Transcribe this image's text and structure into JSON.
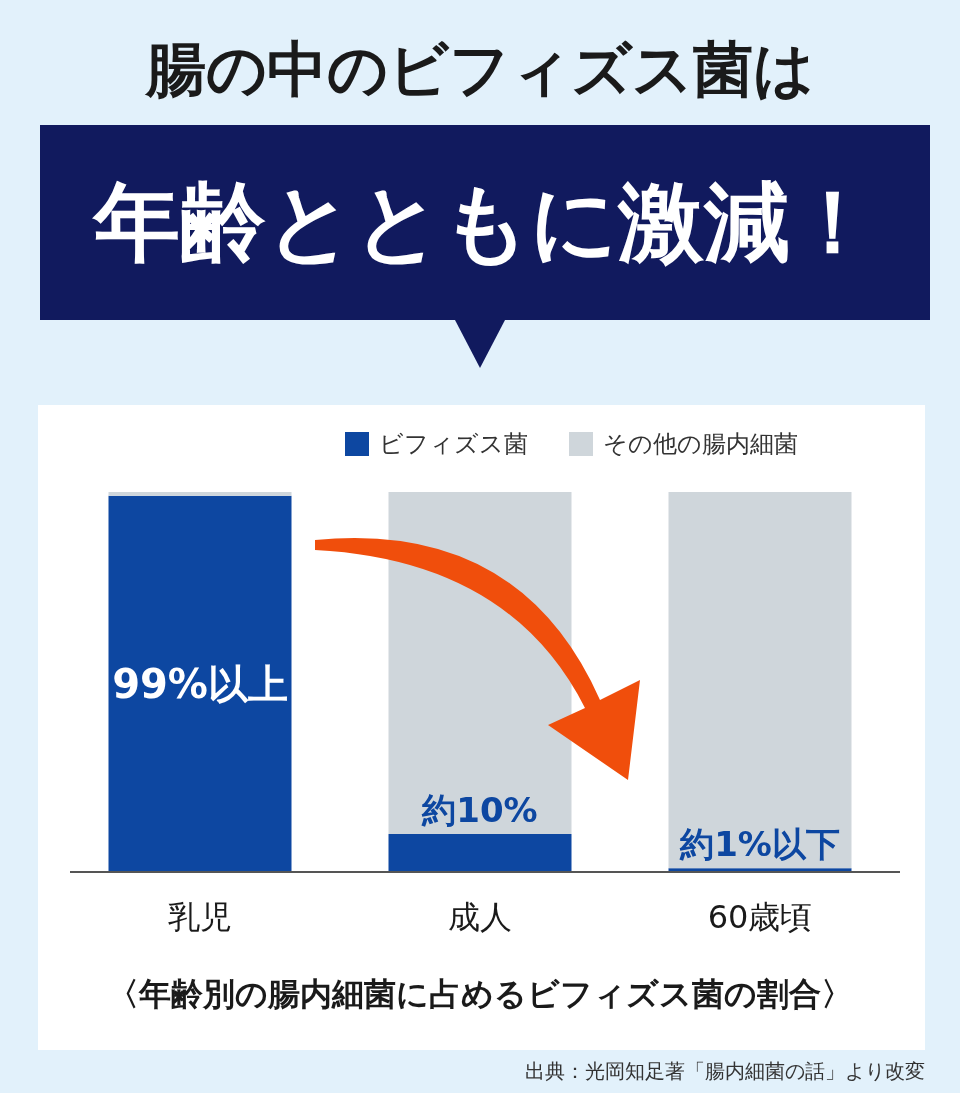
{
  "chart_data": {
    "type": "bar",
    "title": "腸の中のビフィズス菌は",
    "subtitle": "年齢とともに激減！",
    "categories": [
      "乳児",
      "成人",
      "60歳頃"
    ],
    "stacked": true,
    "legend": "top right",
    "series": [
      {
        "name": "ビフィズス菌",
        "color": "#0d47a1",
        "values": [
          99,
          10,
          1
        ],
        "value_labels": [
          "99%以上",
          "約10%",
          "約1%以下"
        ]
      },
      {
        "name": "その他の腸内細菌",
        "color": "#cfd6db",
        "values": [
          1,
          90,
          99
        ]
      }
    ],
    "annotations": [
      "〈年齢別の腸内細菌に占めるビフィズス菌の割合〉",
      "出典：光岡知足著「腸内細菌の話」より改変"
    ]
  }
}
